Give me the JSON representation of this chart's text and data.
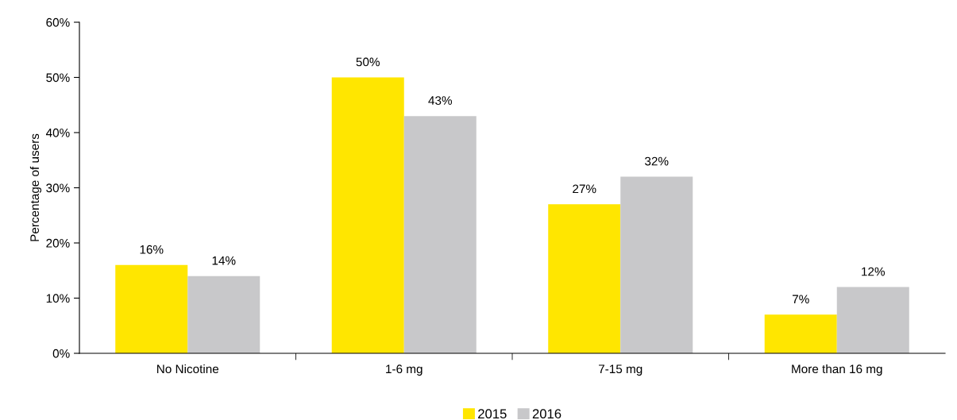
{
  "chart_data": {
    "type": "bar",
    "ylabel": "Percentage of users",
    "categories": [
      "No Nicotine",
      "1-6 mg",
      "7-15 mg",
      "More than 16 mg"
    ],
    "series": [
      {
        "name": "2015",
        "color": "#ffe600",
        "values": [
          16,
          50,
          27,
          7
        ],
        "value_labels": [
          "16%",
          "50%",
          "27%",
          "7%"
        ]
      },
      {
        "name": "2016",
        "color": "#c8c8ca",
        "values": [
          14,
          43,
          32,
          12
        ],
        "value_labels": [
          "14%",
          "43%",
          "32%",
          "12%"
        ]
      }
    ],
    "ylim": [
      0,
      60
    ],
    "yticks": [
      {
        "value": 0,
        "label": "0%"
      },
      {
        "value": 10,
        "label": "10%"
      },
      {
        "value": 20,
        "label": "20%"
      },
      {
        "value": 30,
        "label": "30%"
      },
      {
        "value": 40,
        "label": "40%"
      },
      {
        "value": 50,
        "label": "50%"
      },
      {
        "value": 60,
        "label": "60%"
      }
    ],
    "grid": false,
    "legend": "bottom"
  }
}
